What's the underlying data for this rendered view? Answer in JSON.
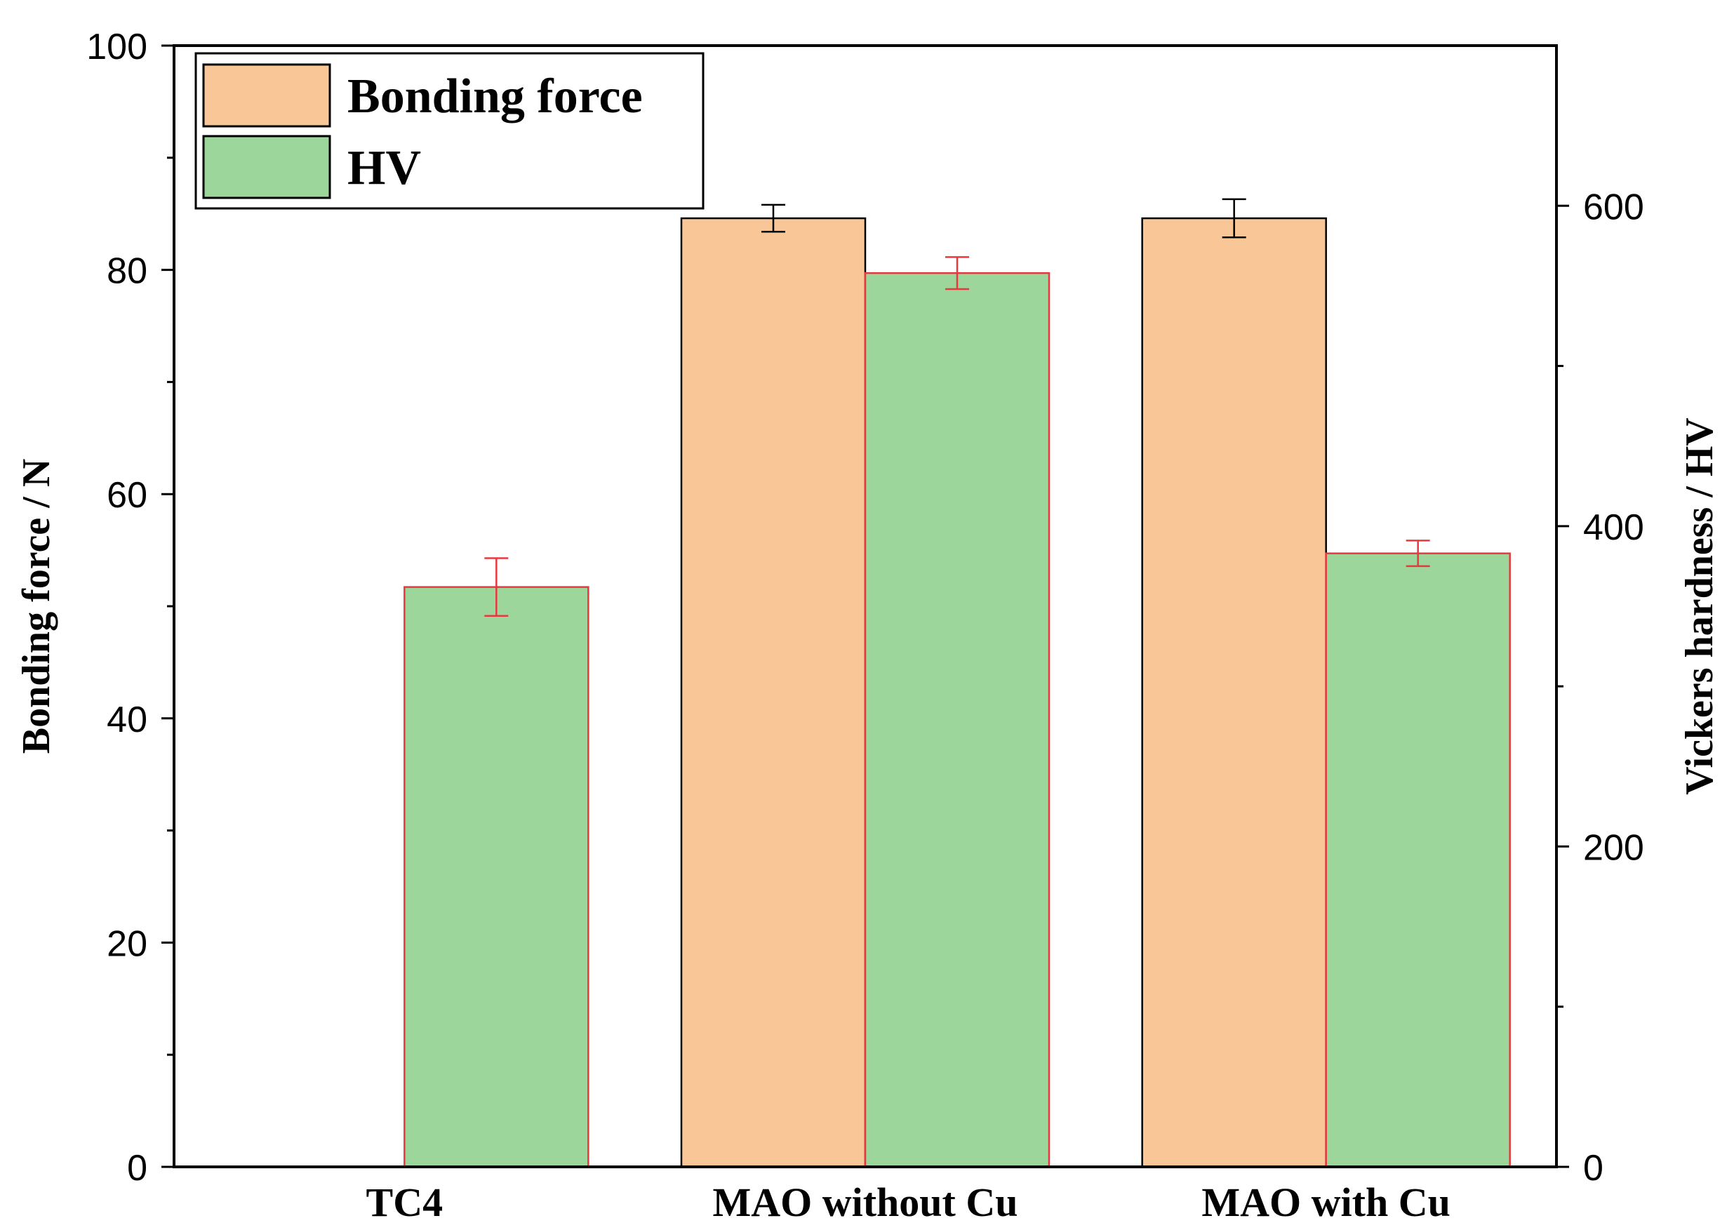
{
  "chart_data": {
    "type": "bar",
    "categories": [
      "TC4",
      "MAO without Cu",
      "MAO with Cu"
    ],
    "series": [
      {
        "name": "Bonding force",
        "axis": "left",
        "color": "#F9C698",
        "edge_color": "#000000",
        "error_color": "#000000",
        "values": [
          null,
          84.6,
          84.6
        ],
        "errors": [
          null,
          1.2,
          1.7
        ]
      },
      {
        "name": "HV",
        "axis": "right",
        "color": "#9DD69A",
        "edge_color": "#E8383D",
        "error_color": "#E8383D",
        "values": [
          362,
          558,
          383
        ],
        "errors": [
          18,
          10,
          8
        ]
      }
    ],
    "ylabel": "Bonding force / N",
    "y2label": "Vickers hardness / HV",
    "ylim": [
      0,
      100
    ],
    "y2lim": [
      0,
      700
    ],
    "y_ticks": [
      0,
      20,
      40,
      60,
      80,
      100
    ],
    "y2_ticks": [
      0,
      200,
      400,
      600
    ],
    "legend_position": "top-left",
    "grid": false
  }
}
